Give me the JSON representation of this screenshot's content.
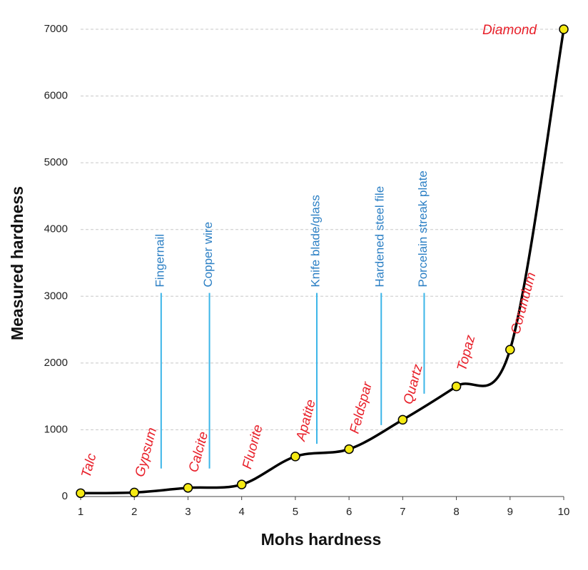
{
  "chart_data": {
    "type": "line",
    "x_label": "Mohs hardness",
    "y_label": "Measured hardness",
    "x": [
      1,
      2,
      3,
      4,
      5,
      6,
      7,
      8,
      9,
      10
    ],
    "values": [
      50,
      60,
      130,
      180,
      600,
      710,
      1150,
      1650,
      2200,
      7000
    ],
    "point_labels": [
      "Talc",
      "Gypsum",
      "Calcite",
      "Fluorite",
      "Apatite",
      "Feldspar",
      "Quartz",
      "Topaz",
      "Corundum",
      "Diamond"
    ],
    "color": "#000000",
    "marker_color": "#f5ea14",
    "label_color": "#e8202a",
    "references": [
      {
        "label": "Fingernail",
        "x": 2.5,
        "range": [
          420,
          3050
        ]
      },
      {
        "label": "Copper wire",
        "x": 3.4,
        "range": [
          420,
          3050
        ]
      },
      {
        "label": "Knife blade/glass",
        "x": 5.4,
        "range": [
          790,
          3050
        ]
      },
      {
        "label": "Hardened steel file",
        "x": 6.6,
        "range": [
          1070,
          3050
        ]
      },
      {
        "label": "Porcelain streak plate",
        "x": 7.4,
        "range": [
          1540,
          3050
        ]
      }
    ],
    "reference_color": "#3bb5e8",
    "xlim": [
      1,
      10
    ],
    "xticks": [
      1,
      2,
      3,
      4,
      5,
      6,
      7,
      8,
      9,
      10
    ],
    "ylim": [
      0,
      7000
    ],
    "yticks": [
      0,
      1000,
      2000,
      3000,
      4000,
      5000,
      6000,
      7000
    ],
    "grid": true
  }
}
